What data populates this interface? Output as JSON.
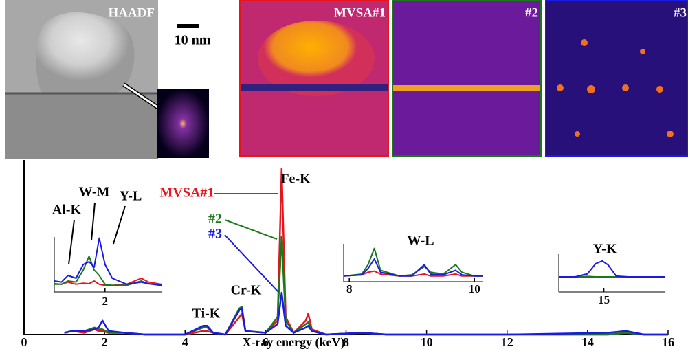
{
  "images": [
    {
      "label": "HAADF"
    },
    {
      "label": "MVSA#1"
    },
    {
      "label": "#2"
    },
    {
      "label": "#3"
    }
  ],
  "scale_bar": "10 nm",
  "chart_data": [
    {
      "type": "line",
      "x_label": "X-ray energy (keV)",
      "xlim": [
        0,
        16
      ],
      "xticks": [
        0,
        2,
        4,
        6,
        8,
        10,
        12,
        14,
        16
      ],
      "ylim": [
        0,
        100
      ],
      "annotations": [
        "Fe-K",
        "Cr-K",
        "Ti-K"
      ],
      "x": [
        1.0,
        1.2,
        1.5,
        1.75,
        1.85,
        1.95,
        2.1,
        2.5,
        3.0,
        4.0,
        4.45,
        4.55,
        4.7,
        5.0,
        5.35,
        5.41,
        5.5,
        6.0,
        6.3,
        6.4,
        6.5,
        6.7,
        7.0,
        7.06,
        7.15,
        7.5,
        8.4,
        9.0,
        10.0,
        12.0,
        14.5,
        14.95,
        15.4,
        16.0
      ],
      "series": [
        {
          "name": "MVSA#1",
          "color": "#e8141c",
          "values": [
            1,
            2,
            1,
            3,
            2,
            2,
            1,
            1,
            0,
            0,
            2,
            2,
            1,
            0,
            10,
            12,
            2,
            1,
            8,
            95,
            10,
            1,
            8,
            12,
            3,
            0,
            1,
            0,
            0,
            0,
            0,
            1,
            0,
            0
          ]
        },
        {
          "name": "#2",
          "color": "#1a7a1a",
          "values": [
            1,
            2,
            2,
            4,
            3,
            3,
            1,
            1,
            0,
            0,
            4,
            4,
            1,
            0,
            15,
            16,
            2,
            1,
            10,
            56,
            8,
            1,
            6,
            7,
            2,
            0,
            1,
            0,
            0,
            0,
            0,
            1,
            0,
            0
          ]
        },
        {
          "name": "#3",
          "color": "#1a1ae6",
          "values": [
            1,
            2,
            2,
            3,
            4,
            8,
            2,
            1,
            0,
            0,
            5,
            5,
            1,
            0,
            14,
            15,
            2,
            1,
            6,
            24,
            5,
            1,
            4,
            5,
            2,
            0,
            1,
            0,
            0,
            0,
            1,
            2,
            0,
            0
          ]
        }
      ]
    },
    {
      "type": "line",
      "xlim": [
        1.3,
        2.78
      ],
      "xticks": [
        2
      ],
      "ylim": [
        0,
        100
      ],
      "annotations": [
        "Al-K",
        "W-M",
        "Y-L"
      ],
      "x": [
        1.3,
        1.4,
        1.49,
        1.6,
        1.7,
        1.78,
        1.85,
        1.92,
        2.0,
        2.1,
        2.3,
        2.5,
        2.6,
        2.78
      ],
      "series": [
        {
          "color": "#e8141c",
          "values": [
            15,
            14,
            18,
            14,
            16,
            15,
            20,
            14,
            12,
            12,
            14,
            25,
            18,
            14
          ]
        },
        {
          "color": "#1a7a1a",
          "values": [
            14,
            14,
            20,
            18,
            40,
            65,
            40,
            30,
            14,
            12,
            12,
            20,
            15,
            12
          ]
        },
        {
          "color": "#1a1ae6",
          "values": [
            20,
            18,
            30,
            25,
            50,
            55,
            45,
            98,
            50,
            25,
            14,
            18,
            15,
            12
          ]
        }
      ]
    },
    {
      "type": "line",
      "xlim": [
        7.91,
        10.14
      ],
      "xticks": [
        8,
        10
      ],
      "ylim": [
        0,
        100
      ],
      "annotations": [
        "W-L"
      ],
      "x": [
        7.91,
        8.2,
        8.3,
        8.4,
        8.5,
        8.8,
        9.0,
        9.2,
        9.3,
        9.5,
        9.7,
        9.8,
        10.0,
        10.14
      ],
      "series": [
        {
          "color": "#e8141c",
          "values": [
            15,
            18,
            25,
            28,
            20,
            15,
            15,
            20,
            15,
            15,
            20,
            15,
            15,
            15
          ]
        },
        {
          "color": "#1a7a1a",
          "values": [
            15,
            20,
            45,
            88,
            30,
            15,
            18,
            40,
            25,
            20,
            45,
            25,
            15,
            15
          ]
        },
        {
          "color": "#1a1ae6",
          "values": [
            15,
            18,
            35,
            60,
            25,
            15,
            15,
            45,
            20,
            18,
            30,
            18,
            15,
            15
          ]
        }
      ]
    },
    {
      "type": "line",
      "xlim": [
        13.9,
        16.5
      ],
      "xticks": [
        15
      ],
      "ylim": [
        0,
        100
      ],
      "annotations": [
        "Y-K"
      ],
      "x": [
        13.9,
        14.3,
        14.6,
        14.8,
        14.96,
        15.1,
        15.3,
        15.6,
        16.0,
        16.5
      ],
      "series": [
        {
          "color": "#e8141c",
          "values": [
            40,
            40,
            40,
            40,
            40,
            40,
            40,
            40,
            40,
            40
          ]
        },
        {
          "color": "#1a7a1a",
          "values": [
            40,
            40,
            41,
            40,
            40,
            40,
            40,
            40,
            40,
            40
          ]
        },
        {
          "color": "#1a1ae6",
          "values": [
            40,
            40,
            48,
            75,
            82,
            72,
            42,
            40,
            40,
            40
          ]
        }
      ]
    }
  ]
}
